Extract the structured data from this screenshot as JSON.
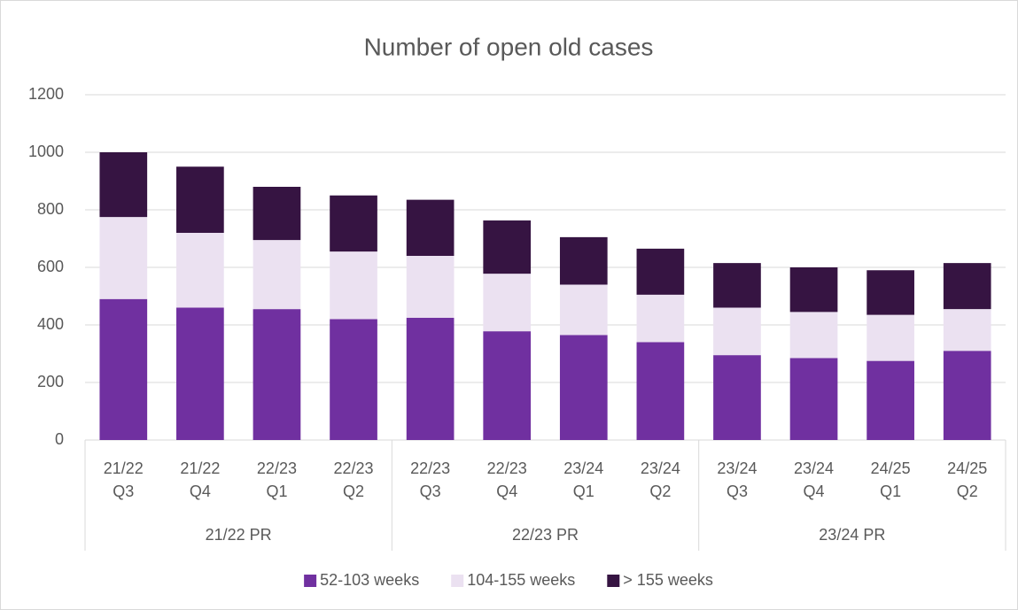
{
  "chart_data": {
    "type": "stacked_bar",
    "title": "Number of open old cases",
    "categories": [
      [
        "21/22",
        "Q3"
      ],
      [
        "21/22",
        "Q4"
      ],
      [
        "22/23",
        "Q1"
      ],
      [
        "22/23",
        "Q2"
      ],
      [
        "22/23",
        "Q3"
      ],
      [
        "22/23",
        "Q4"
      ],
      [
        "23/24",
        "Q1"
      ],
      [
        "23/24",
        "Q2"
      ],
      [
        "23/24",
        "Q3"
      ],
      [
        "23/24",
        "Q4"
      ],
      [
        "24/25",
        "Q1"
      ],
      [
        "24/25",
        "Q2"
      ]
    ],
    "groups": [
      "21/22 PR",
      "22/23 PR",
      "23/24 PR"
    ],
    "series": [
      {
        "name": "52-103 weeks",
        "color": "#7030a0",
        "values": [
          490,
          460,
          455,
          420,
          425,
          378,
          365,
          340,
          295,
          285,
          275,
          310
        ]
      },
      {
        "name": "104-155 weeks",
        "color": "#ebe1f1",
        "values": [
          285,
          260,
          240,
          235,
          215,
          200,
          175,
          165,
          165,
          160,
          160,
          145
        ]
      },
      {
        "name": "> 155 weeks",
        "color": "#361442",
        "values": [
          225,
          230,
          185,
          195,
          195,
          185,
          165,
          160,
          155,
          155,
          155,
          160
        ]
      }
    ],
    "ylim": [
      0,
      1200
    ],
    "yticks": [
      0,
      200,
      400,
      600,
      800,
      1000,
      1200
    ],
    "grid": true,
    "legend": "bottom"
  }
}
